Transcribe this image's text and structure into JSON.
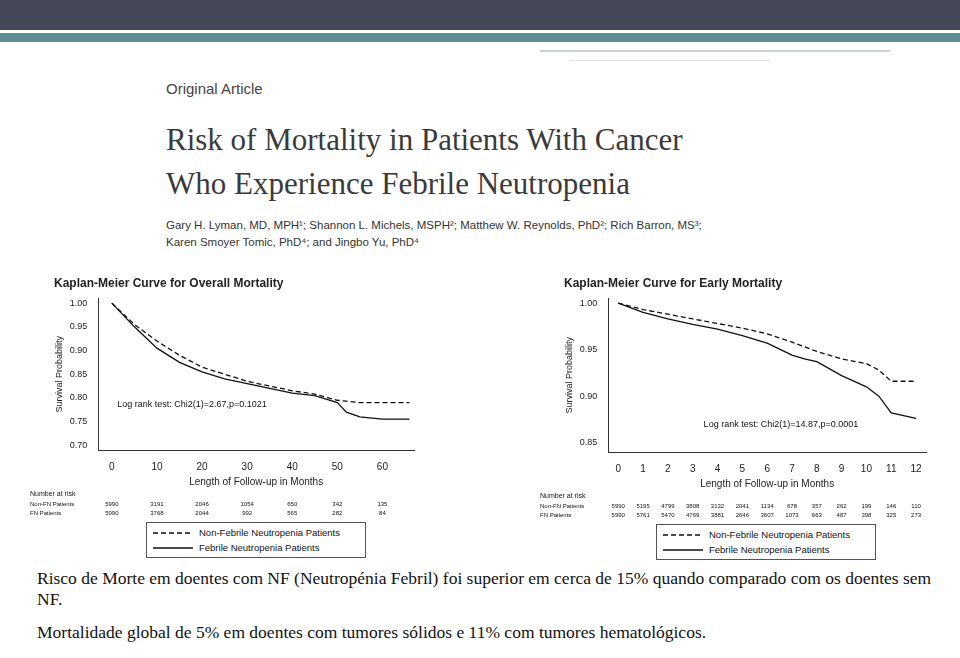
{
  "header": {
    "label": "Original Article",
    "title": [
      "Risk of Mortality in Patients With Cancer",
      "Who Experience Febrile Neutropenia"
    ],
    "authors": [
      "Gary H. Lyman, MD, MPH¹; Shannon L. Michels, MSPH²; Matthew W. Reynolds, PhD²; Rich Barron, MS³;",
      "Karen Smoyer Tomic, PhD⁴; and Jingbo Yu, PhD⁴"
    ]
  },
  "chart_data": [
    {
      "type": "line",
      "title": "Kaplan-Meier Curve for Overall Mortality",
      "x_label": "Length of Follow-up in Months",
      "y_label": "Survival Probability",
      "annotation": "Log rank test: Chi2(1)=2.67,p=0.1021",
      "x": [
        0,
        5,
        10,
        15,
        20,
        25,
        30,
        35,
        40,
        45,
        50,
        52,
        55,
        60,
        66
      ],
      "series": [
        {
          "name": "Non-Febrile Neutropenia Patients",
          "color": "#111111",
          "line_style": "dashed",
          "values": [
            1.0,
            0.955,
            0.92,
            0.89,
            0.865,
            0.85,
            0.835,
            0.825,
            0.815,
            0.808,
            0.795,
            0.793,
            0.79,
            0.79,
            0.79
          ]
        },
        {
          "name": "Febrile Neutropenia Patients",
          "color": "#111111",
          "line_style": "solid",
          "values": [
            1.0,
            0.95,
            0.905,
            0.875,
            0.855,
            0.84,
            0.83,
            0.82,
            0.81,
            0.805,
            0.79,
            0.77,
            0.76,
            0.755,
            0.755
          ]
        }
      ],
      "xlim": [
        -3,
        67
      ],
      "xticks": [
        0,
        10,
        20,
        30,
        40,
        50,
        60
      ],
      "ylim": [
        0.69,
        1.01
      ],
      "yticks": [
        {
          "value": 0.7,
          "label": "0.70"
        },
        0.75,
        {
          "value": 0.8,
          "label": "0.80"
        },
        0.85,
        {
          "value": 0.9,
          "label": "0.90"
        },
        0.95,
        {
          "value": 1.0,
          "label": "1.00"
        }
      ],
      "grid": false,
      "legend": "bottom",
      "risk_table": {
        "title": "Number at risk",
        "rows": [
          {
            "name": "Non-FN Patients",
            "values": [
              5990,
              3191,
              2046,
              1054,
              650,
              342,
              135
            ]
          },
          {
            "name": "FN Patients",
            "values": [
              5990,
              3768,
              2044,
              992,
              565,
              282,
              84
            ]
          }
        ]
      }
    },
    {
      "type": "line",
      "title": "Kaplan-Meier Curve for Early Mortality",
      "x_label": "Length of Follow-up in Months",
      "y_label": "Survival Probability",
      "annotation": "Log rank test: Chi2(1)=14.87,p=0.0001",
      "x": [
        0,
        1,
        2,
        3,
        4,
        5,
        6,
        7,
        7.5,
        8,
        9,
        10,
        10.5,
        11,
        12
      ],
      "series": [
        {
          "name": "Non-Febrile Neutropenia Patients",
          "color": "#111111",
          "line_style": "dashed",
          "values": [
            1.0,
            0.993,
            0.988,
            0.983,
            0.978,
            0.973,
            0.967,
            0.958,
            0.953,
            0.948,
            0.94,
            0.935,
            0.928,
            0.916,
            0.916
          ]
        },
        {
          "name": "Febrile Neutropenia Patients",
          "color": "#111111",
          "line_style": "solid",
          "values": [
            1.0,
            0.99,
            0.983,
            0.977,
            0.972,
            0.965,
            0.957,
            0.944,
            0.94,
            0.937,
            0.922,
            0.91,
            0.9,
            0.882,
            0.876
          ]
        }
      ],
      "xlim": [
        -0.4,
        12.4
      ],
      "xticks": [
        0,
        1,
        2,
        3,
        4,
        5,
        6,
        7,
        8,
        9,
        10,
        11,
        12
      ],
      "ylim": [
        0.84,
        1.005
      ],
      "yticks": [
        0.85,
        {
          "value": 0.9,
          "label": "0.90"
        },
        0.95,
        {
          "value": 1.0,
          "label": "1.00"
        }
      ],
      "grid": false,
      "legend": "bottom",
      "risk_table": {
        "title": "Number at risk",
        "rows": [
          {
            "name": "Non-FN Patients",
            "values": [
              5990,
              5195,
              4799,
              3808,
              3132,
              2041,
              1134,
              678,
              357,
              262,
              199,
              146,
              110
            ]
          },
          {
            "name": "FN Patients",
            "values": [
              5990,
              5761,
              5470,
              4769,
              3881,
              2646,
              3607,
              1073,
              663,
              487,
              398,
              325,
              273
            ]
          }
        ]
      }
    }
  ],
  "text": [
    "Risco de Morte em doentes com NF (Neutropénia Febril) foi superior em cerca de 15% quando comparado com os doentes sem NF.",
    "Mortalidade global de 5% em doentes com tumores sólidos e 11% com tumores hematológicos."
  ]
}
